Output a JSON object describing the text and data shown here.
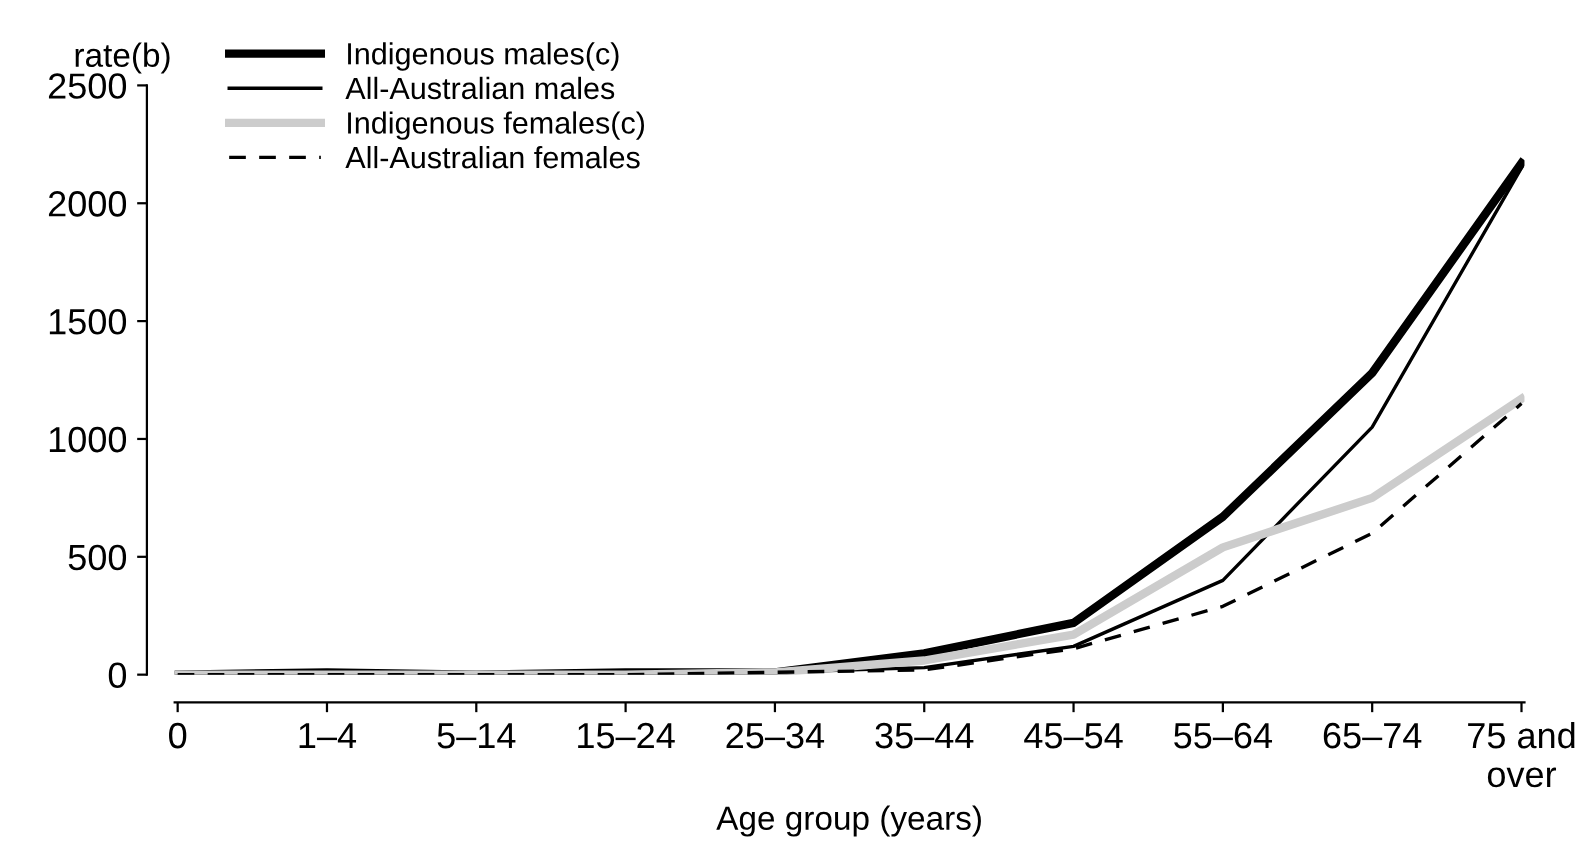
{
  "chart_data": {
    "type": "line",
    "xlabel": "Age group (years)",
    "ylabel": "rate(b)",
    "categories": [
      "0",
      "1–4",
      "5–14",
      "15–24",
      "25–34",
      "35–44",
      "45–54",
      "55–64",
      "65–74",
      "75 and\nover"
    ],
    "ylim": [
      0,
      2500
    ],
    "yticks": [
      0,
      500,
      1000,
      1500,
      2000,
      2500
    ],
    "grid": false,
    "legend": "top left",
    "marker": "none",
    "series": [
      {
        "name": "Indigenous males(c)",
        "color": "#000000",
        "line_style": "solid",
        "values": [
          0,
          10,
          0,
          10,
          10,
          90,
          220,
          670,
          1280,
          2170
        ]
      },
      {
        "name": "All-Australian males",
        "color": "#000000",
        "line_style": "solid",
        "values": [
          0,
          0,
          0,
          0,
          10,
          30,
          120,
          400,
          1050,
          2150
        ]
      },
      {
        "name": "Indigenous females(c)",
        "color": "#cccccc",
        "line_style": "solid",
        "values": [
          0,
          0,
          0,
          0,
          10,
          60,
          170,
          540,
          750,
          1170
        ]
      },
      {
        "name": "All-Australian females",
        "color": "#000000",
        "line_style": "dashed",
        "values": [
          0,
          0,
          0,
          0,
          10,
          20,
          110,
          290,
          600,
          1150
        ]
      }
    ]
  }
}
